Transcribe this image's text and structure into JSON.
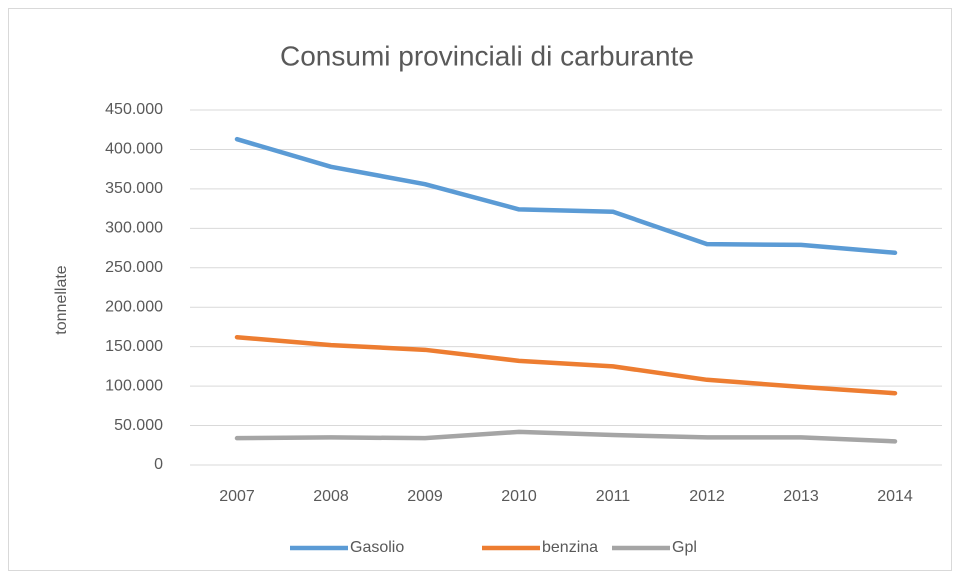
{
  "chart_data": {
    "type": "line",
    "title": "Consumi provinciali di carburante",
    "y_label": "tonnellate",
    "categories": [
      "2007",
      "2008",
      "2009",
      "2010",
      "2011",
      "2012",
      "2013",
      "2014"
    ],
    "series": [
      {
        "name": "Gasolio",
        "color": "#5b9bd5",
        "values": [
          413000,
          378000,
          356000,
          324000,
          321000,
          280000,
          279000,
          269000
        ]
      },
      {
        "name": "benzina",
        "color": "#ed7d31",
        "values": [
          162000,
          152000,
          146000,
          132000,
          125000,
          108000,
          99000,
          91000
        ]
      },
      {
        "name": "Gpl",
        "color": "#a5a5a5",
        "values": [
          34000,
          35000,
          34000,
          42000,
          38000,
          35000,
          35000,
          30000
        ]
      }
    ],
    "ylim": [
      0,
      450000
    ],
    "yticks": [
      0,
      {
        "value": 50000,
        "label": "50.000"
      },
      {
        "value": 100000,
        "label": "100.000"
      },
      {
        "value": 150000,
        "label": "150.000"
      },
      {
        "value": 200000,
        "label": "200.000"
      },
      {
        "value": 250000,
        "label": "250.000"
      },
      {
        "value": 300000,
        "label": "300.000"
      },
      {
        "value": 350000,
        "label": "350.000"
      },
      {
        "value": 400000,
        "label": "400.000"
      },
      {
        "value": 450000,
        "label": "450.000"
      }
    ],
    "grid": true,
    "legend": "bottom"
  }
}
